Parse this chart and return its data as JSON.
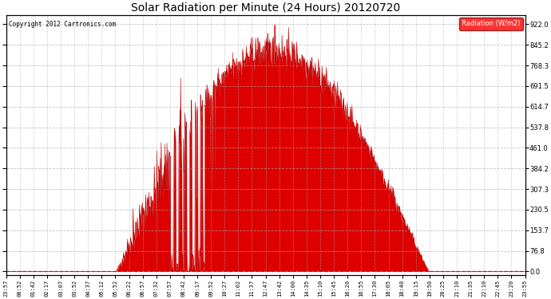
{
  "title": "Solar Radiation per Minute (24 Hours) 20120720",
  "copyright": "Copyright 2012 Cartronics.com",
  "legend_label": "Radiation (W/m2)",
  "fill_color": "#dd0000",
  "line_color": "#bb0000",
  "background_color": "#ffffff",
  "plot_bg_color": "#ffffff",
  "grid_color": "#aaaaaa",
  "yticks": [
    0.0,
    76.8,
    153.7,
    230.5,
    307.3,
    384.2,
    461.0,
    537.8,
    614.7,
    691.5,
    768.3,
    845.2,
    922.0
  ],
  "ymax": 955,
  "ymin": -15,
  "x_tick_labels": [
    "23:57",
    "00:52",
    "01:42",
    "02:17",
    "03:07",
    "03:52",
    "04:37",
    "05:12",
    "05:52",
    "06:22",
    "06:57",
    "07:32",
    "07:57",
    "08:42",
    "09:17",
    "09:52",
    "10:27",
    "11:02",
    "11:37",
    "12:47",
    "13:42",
    "14:00",
    "14:35",
    "15:10",
    "15:45",
    "16:20",
    "16:55",
    "17:30",
    "18:05",
    "18:40",
    "19:15",
    "19:50",
    "20:25",
    "21:10",
    "21:35",
    "22:10",
    "22:45",
    "23:20",
    "23:55"
  ],
  "sunrise_minute": 305,
  "sunset_minute": 1172,
  "peak_minute": 745,
  "peak_value": 922.0,
  "figwidth": 6.9,
  "figheight": 3.75,
  "dpi": 100
}
